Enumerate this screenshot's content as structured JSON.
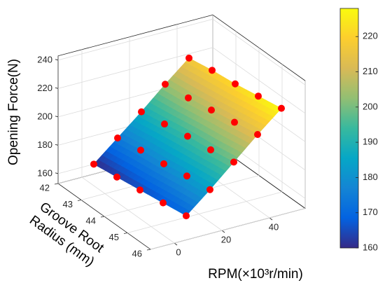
{
  "chart_data": {
    "type": "surface",
    "zlabel": "Opening Force(N)",
    "xlabel": "RPM(×10³r/min)",
    "ylabel": [
      "Groove Root",
      "Radius (mm)"
    ],
    "x": [
      5,
      15,
      25,
      35,
      45
    ],
    "y": [
      42,
      43,
      44,
      45,
      46
    ],
    "z": [
      [
        160,
        162.5,
        165,
        167.5,
        170
      ],
      [
        174,
        177,
        179,
        182,
        184
      ],
      [
        188,
        191,
        194,
        196,
        199
      ],
      [
        203,
        205,
        208,
        211,
        214
      ],
      [
        217,
        220,
        222,
        225,
        228
      ]
    ],
    "xlim": [
      -10,
      55
    ],
    "xticks": [
      0,
      20,
      40
    ],
    "ylim": [
      42,
      46
    ],
    "yticks": [
      42,
      43,
      44,
      45,
      46
    ],
    "zlim": [
      153,
      243
    ],
    "zticks": [
      160,
      180,
      200,
      220,
      240
    ],
    "clim": [
      160,
      228
    ],
    "cticks": [
      160,
      170,
      180,
      190,
      200,
      210,
      220
    ],
    "colormap": "parula",
    "marker_color": "#ff0000",
    "grid": true
  }
}
